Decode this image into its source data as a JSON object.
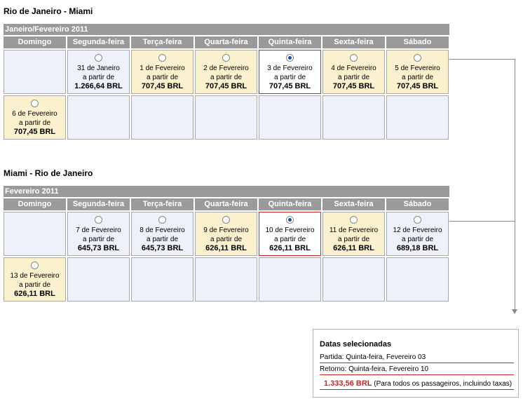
{
  "outbound": {
    "title": "Rio de Janeiro - Miami",
    "month": "Janeiro/Fevereiro 2011",
    "days": [
      "Domingo",
      "Segunda-feira",
      "Terça-feira",
      "Quarta-feira",
      "Quinta-feira",
      "Sexta-feira",
      "Sábado"
    ],
    "weeks": [
      [
        {
          "empty": true
        },
        {
          "date": "31 de Janeiro",
          "from": "a partir de",
          "price": "1.266,64 BRL",
          "style": "blue",
          "checked": false
        },
        {
          "date": "1 de Fevereiro",
          "from": "a partir de",
          "price": "707,45 BRL",
          "style": "yellow",
          "checked": false
        },
        {
          "date": "2 de Fevereiro",
          "from": "a partir de",
          "price": "707,45 BRL",
          "style": "yellow",
          "checked": false
        },
        {
          "date": "3 de Fevereiro",
          "from": "a partir de",
          "price": "707,45 BRL",
          "style": "selected",
          "checked": true
        },
        {
          "date": "4 de Fevereiro",
          "from": "a partir de",
          "price": "707,45 BRL",
          "style": "yellow",
          "checked": false
        },
        {
          "date": "5 de Fevereiro",
          "from": "a partir de",
          "price": "707,45 BRL",
          "style": "yellow",
          "checked": false
        }
      ],
      [
        {
          "date": "6 de Fevereiro",
          "from": "a partir de",
          "price": "707,45 BRL",
          "style": "yellow",
          "checked": false
        },
        {
          "empty": true
        },
        {
          "empty": true
        },
        {
          "empty": true
        },
        {
          "empty": true
        },
        {
          "empty": true
        },
        {
          "empty": true
        }
      ]
    ]
  },
  "return": {
    "title": "Miami - Rio de Janeiro",
    "month": "Fevereiro 2011",
    "days": [
      "Domingo",
      "Segunda-feira",
      "Terça-feira",
      "Quarta-feira",
      "Quinta-feira",
      "Sexta-feira",
      "Sábado"
    ],
    "weeks": [
      [
        {
          "empty": true
        },
        {
          "date": "7 de Fevereiro",
          "from": "a partir de",
          "price": "645,73 BRL",
          "style": "blue",
          "checked": false
        },
        {
          "date": "8 de Fevereiro",
          "from": "a partir de",
          "price": "645,73 BRL",
          "style": "blue",
          "checked": false
        },
        {
          "date": "9 de Fevereiro",
          "from": "a partir de",
          "price": "626,11 BRL",
          "style": "yellow",
          "checked": false
        },
        {
          "date": "10 de Fevereiro",
          "from": "a partir de",
          "price": "626,11 BRL",
          "style": "selected",
          "checked": true
        },
        {
          "date": "11 de Fevereiro",
          "from": "a partir de",
          "price": "626,11 BRL",
          "style": "yellow",
          "checked": false
        },
        {
          "date": "12 de Fevereiro",
          "from": "a partir de",
          "price": "689,18 BRL",
          "style": "blue",
          "checked": false
        }
      ],
      [
        {
          "date": "13 de Fevereiro",
          "from": "a partir de",
          "price": "626,11 BRL",
          "style": "yellow",
          "checked": false
        },
        {
          "empty": true
        },
        {
          "empty": true
        },
        {
          "empty": true
        },
        {
          "empty": true
        },
        {
          "empty": true
        },
        {
          "empty": true
        }
      ]
    ]
  },
  "summary": {
    "title": "Datas selecionadas",
    "departure": "Partida: Quinta-feira, Fevereiro 03",
    "return": "Retorno: Quinta-feira, Fevereiro 10",
    "total": "1.333,56 BRL",
    "note": "(Para todos os passageiros, incluindo taxas)"
  },
  "colors": {
    "header_gray": "#9a9a9a",
    "cell_blue": "#eef0fa",
    "cell_yellow": "#fbf1cf",
    "selected_border": "#cc2222",
    "total_red": "#cc2222"
  }
}
